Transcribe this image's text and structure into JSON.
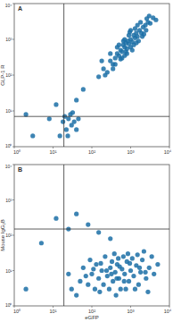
{
  "chart_data": [
    {
      "type": "scatter",
      "title": "A",
      "y_label": "GLP-1 R",
      "color": "#1b6ea6",
      "log": true,
      "xlim": [
        1,
        10000
      ],
      "ylim": [
        1,
        10000
      ],
      "xticks": [
        {
          "value": 1,
          "label": "10⁰"
        },
        {
          "value": 10,
          "label": "10¹"
        },
        {
          "value": 100,
          "label": "10²"
        },
        {
          "value": 1000,
          "label": "10³"
        },
        {
          "value": 10000,
          "label": "10⁴"
        }
      ],
      "yticks": [
        {
          "value": 1,
          "label": "10⁰"
        },
        {
          "value": 10,
          "label": "10¹"
        },
        {
          "value": 100,
          "label": "10²"
        },
        {
          "value": 1000,
          "label": "10³"
        },
        {
          "value": 10000,
          "label": "10⁴"
        }
      ],
      "quadrant_gates": {
        "x": 19,
        "y": 7
      },
      "x": [
        150,
        200,
        250,
        300,
        350,
        400,
        450,
        500,
        550,
        600,
        650,
        700,
        750,
        800,
        850,
        900,
        1000,
        1100,
        1200,
        1300,
        1400,
        1500,
        1700,
        1900,
        2100,
        2400,
        2800,
        3200,
        3800,
        300,
        400,
        500,
        600,
        700,
        800,
        900,
        1000,
        1200,
        1500,
        2000,
        2500,
        3000,
        350,
        450,
        550,
        650,
        750,
        950,
        1100,
        1300,
        1600,
        1800,
        2200,
        180,
        220,
        4500,
        1000,
        700,
        2600,
        1400,
        15,
        18,
        22,
        25,
        30,
        28,
        20,
        35,
        40,
        32,
        24,
        45,
        3,
        8,
        40,
        60,
        12,
        2
      ],
      "y": [
        90,
        150,
        120,
        250,
        200,
        300,
        400,
        350,
        500,
        450,
        700,
        600,
        800,
        550,
        900,
        750,
        1000,
        850,
        1300,
        1100,
        1500,
        1200,
        1800,
        1500,
        2200,
        2500,
        3000,
        2800,
        4000,
        400,
        200,
        700,
        300,
        1000,
        400,
        1300,
        600,
        700,
        2500,
        1200,
        1800,
        4500,
        150,
        600,
        280,
        900,
        450,
        1600,
        500,
        2000,
        900,
        3000,
        1400,
        250,
        100,
        3500,
        1800,
        350,
        3800,
        800,
        2,
        5,
        3,
        6,
        4,
        8,
        7,
        5,
        3,
        9,
        2,
        6,
        2,
        6,
        20,
        40,
        15,
        8
      ]
    },
    {
      "type": "scatter",
      "title": "B",
      "y_label": "Mouse IgG₂B",
      "x_label": "eGFP",
      "color": "#1b6ea6",
      "log": true,
      "xlim": [
        1,
        10000
      ],
      "ylim": [
        1,
        10000
      ],
      "xticks": [
        {
          "value": 1,
          "label": "10⁰"
        },
        {
          "value": 10,
          "label": "10¹"
        },
        {
          "value": 100,
          "label": "10²"
        },
        {
          "value": 1000,
          "label": "10³"
        },
        {
          "value": 10000,
          "label": "10⁴"
        }
      ],
      "yticks": [
        {
          "value": 1,
          "label": "10⁰"
        },
        {
          "value": 10,
          "label": "10¹"
        },
        {
          "value": 100,
          "label": "10²"
        },
        {
          "value": 1000,
          "label": "10³"
        },
        {
          "value": 10000,
          "label": "10⁴"
        }
      ],
      "quadrant_gates": {
        "x": 19,
        "y": 150
      },
      "x": [
        30,
        50,
        80,
        100,
        120,
        150,
        180,
        200,
        250,
        300,
        350,
        400,
        450,
        500,
        550,
        600,
        700,
        800,
        900,
        1000,
        1200,
        1400,
        1600,
        1800,
        2000,
        2500,
        3000,
        4000,
        5000,
        60,
        90,
        130,
        160,
        220,
        280,
        330,
        380,
        420,
        480,
        650,
        750,
        850,
        1100,
        1300,
        1500,
        2200,
        2800,
        3500,
        70,
        110,
        170,
        240,
        320,
        440,
        520,
        680,
        950,
        1700,
        2400,
        40,
        25,
        12,
        25,
        40,
        80,
        5,
        150,
        300,
        2
      ],
      "y": [
        3,
        5,
        4,
        8,
        3,
        6,
        10,
        4,
        7,
        12,
        5,
        9,
        15,
        6,
        3,
        11,
        8,
        18,
        5,
        10,
        7,
        14,
        4,
        9,
        20,
        6,
        12,
        8,
        15,
        12,
        20,
        15,
        2.5,
        25,
        3,
        18,
        30,
        2,
        22,
        25,
        3,
        30,
        22,
        3,
        28,
        35,
        2.5,
        25,
        7,
        11,
        16,
        10,
        8,
        6,
        13,
        5,
        16,
        12,
        9,
        2,
        8,
        300,
        150,
        400,
        200,
        60,
        120,
        80,
        3
      ]
    }
  ]
}
